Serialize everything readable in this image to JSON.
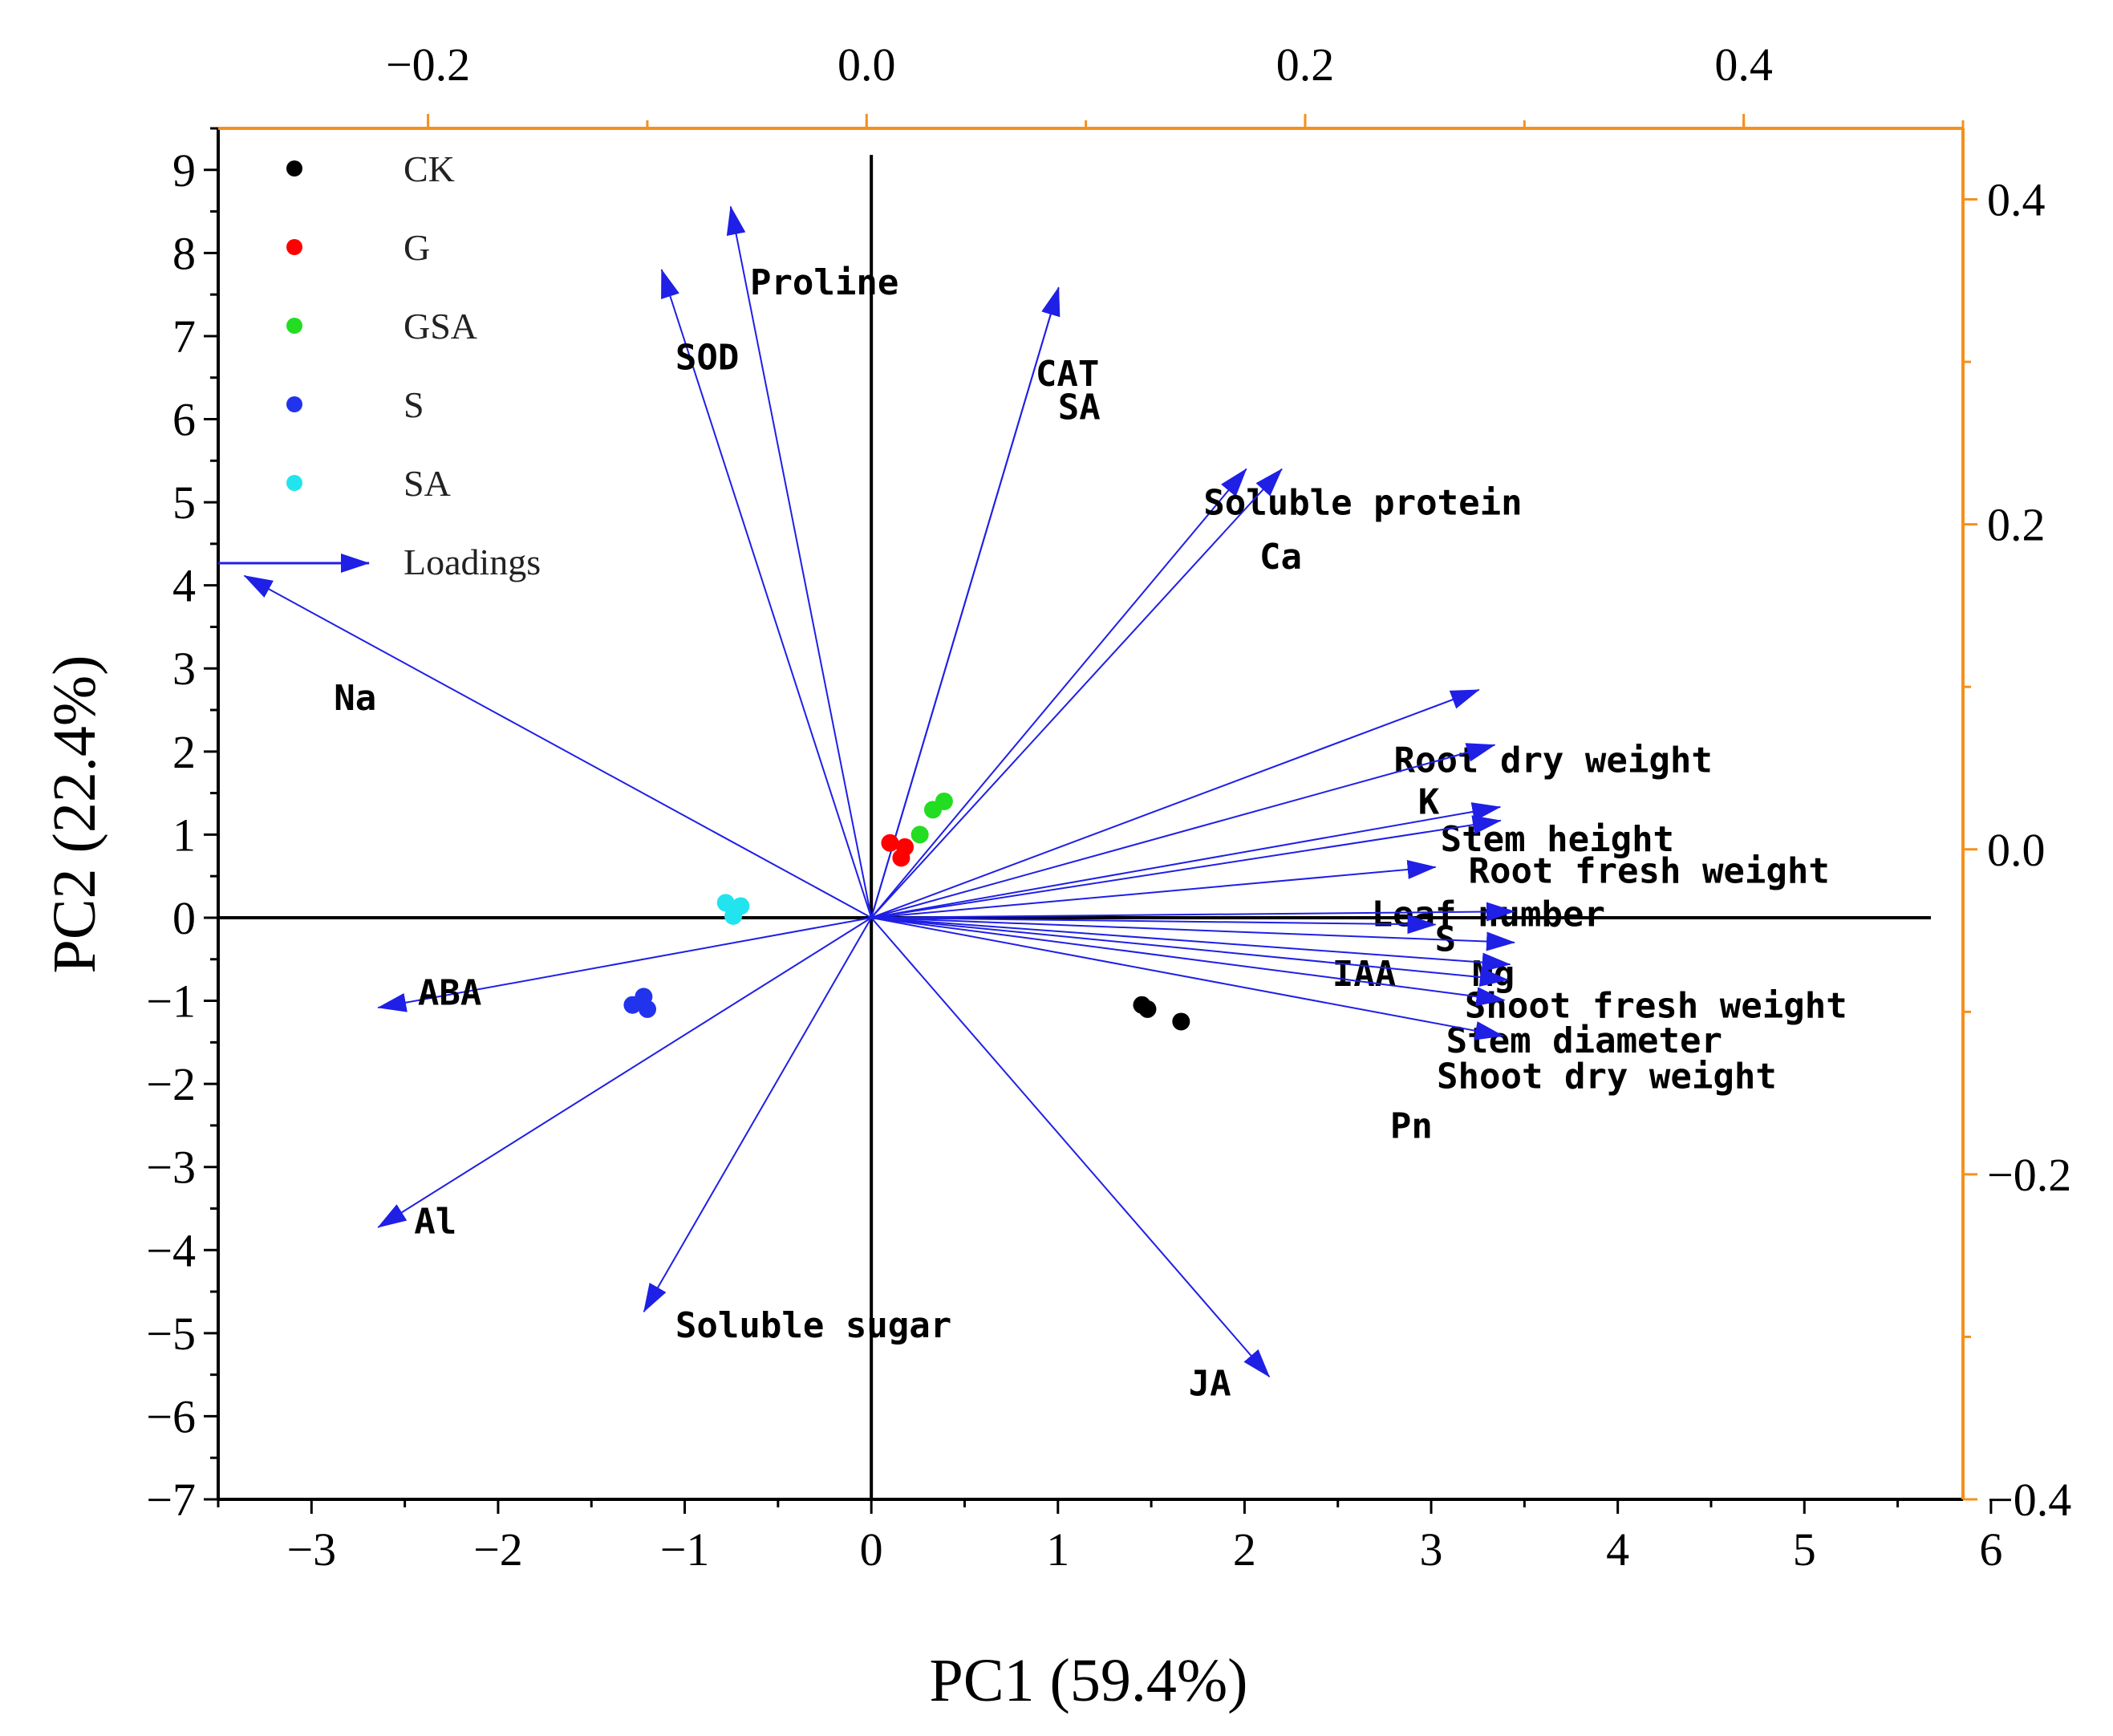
{
  "chart_data": {
    "type": "scatter",
    "subtype": "pca-biplot",
    "xlabel": "PC1 (59.4%)",
    "ylabel": "PC2 (22.4%)",
    "xlim": [
      -3.5,
      5.85
    ],
    "ylim": [
      -7,
      9.5
    ],
    "xticks": [
      -3,
      -2,
      -1,
      0,
      1,
      2,
      3,
      4,
      5,
      6
    ],
    "xtick_labels": [
      "−3",
      "−2",
      "−1",
      "0",
      "1",
      "2",
      "3",
      "4",
      "5",
      "6"
    ],
    "yticks": [
      -7,
      -6,
      -5,
      -4,
      -3,
      -2,
      -1,
      0,
      1,
      2,
      3,
      4,
      5,
      6,
      7,
      8,
      9
    ],
    "ytick_labels": [
      "−7",
      "−6",
      "−5",
      "−4",
      "−3",
      "−2",
      "−1",
      "0",
      "1",
      "2",
      "3",
      "4",
      "5",
      "6",
      "7",
      "8",
      "9"
    ],
    "top_axis": {
      "lim": [
        -0.2957,
        0.5
      ],
      "ticks": [
        -0.2,
        0.0,
        0.2,
        0.4
      ],
      "tick_labels": [
        "−0.2",
        "0.0",
        "0.2",
        "0.4"
      ],
      "color": "#f5901e"
    },
    "right_axis": {
      "lim": [
        -0.4,
        0.4437
      ],
      "ticks": [
        -0.4,
        -0.2,
        0.0,
        0.2,
        0.4
      ],
      "tick_labels": [
        "−0.4",
        "−0.2",
        "0.0",
        "0.2",
        "0.4"
      ],
      "color": "#f5901e"
    },
    "legend": {
      "placement": "top-left",
      "entries": [
        {
          "name": "CK",
          "color": "#000000",
          "kind": "point"
        },
        {
          "name": "G",
          "color": "#ff0000",
          "kind": "point"
        },
        {
          "name": "GSA",
          "color": "#22dd22",
          "kind": "point"
        },
        {
          "name": "S",
          "color": "#2233ee",
          "kind": "point"
        },
        {
          "name": "SA",
          "color": "#22e4ee",
          "kind": "point"
        },
        {
          "name": "Loadings",
          "color": "#1f1fe6",
          "kind": "arrow"
        }
      ]
    },
    "series": [
      {
        "name": "CK",
        "color": "#000000",
        "points": [
          [
            1.45,
            -1.05
          ],
          [
            1.48,
            -1.1
          ],
          [
            1.66,
            -1.25
          ]
        ]
      },
      {
        "name": "G",
        "color": "#ff0000",
        "points": [
          [
            0.1,
            0.9
          ],
          [
            0.18,
            0.85
          ],
          [
            0.16,
            0.72
          ]
        ]
      },
      {
        "name": "GSA",
        "color": "#22dd22",
        "points": [
          [
            0.26,
            1.0
          ],
          [
            0.33,
            1.3
          ],
          [
            0.39,
            1.4
          ]
        ]
      },
      {
        "name": "S",
        "color": "#2233ee",
        "points": [
          [
            -1.28,
            -1.05
          ],
          [
            -1.22,
            -0.95
          ],
          [
            -1.2,
            -1.1
          ]
        ]
      },
      {
        "name": "SA",
        "color": "#22e4ee",
        "points": [
          [
            -0.78,
            0.18
          ],
          [
            -0.74,
            0.02
          ],
          [
            -0.7,
            0.14
          ]
        ]
      }
    ],
    "loadings": [
      {
        "name": "Proline",
        "x": -0.062,
        "y": 0.3956,
        "lx": -0.65,
        "ly": 7.5
      },
      {
        "name": "SOD",
        "x": -0.0935,
        "y": 0.3568,
        "lx": -1.05,
        "ly": 6.6
      },
      {
        "name": "CAT",
        "x": 0.0876,
        "y": 0.3458,
        "lx": 0.88,
        "ly": 6.4
      },
      {
        "name": "SA",
        "x": 0.0876,
        "y": 0.3458,
        "lx": 1.0,
        "ly": 6.0
      },
      {
        "name": "Soluble protein",
        "x": 0.1732,
        "y": 0.2341,
        "lx": 1.78,
        "ly": 4.85
      },
      {
        "name": "Ca",
        "x": 0.1894,
        "y": 0.2341,
        "lx": 2.08,
        "ly": 4.2
      },
      {
        "name": "Na",
        "x": -0.2838,
        "y": 0.1684,
        "lx": -2.88,
        "ly": 2.5
      },
      {
        "name": "Root dry weight",
        "x": 0.2793,
        "y": 0.0982,
        "lx": 2.8,
        "ly": 1.75
      },
      {
        "name": "K",
        "x": 0.2865,
        "y": 0.0643,
        "lx": 2.93,
        "ly": 1.25
      },
      {
        "name": "Stem height",
        "x": 0.289,
        "y": 0.0261,
        "lx": 3.05,
        "ly": 0.8
      },
      {
        "name": "Root fresh weight",
        "x": 0.2892,
        "y": 0.0177,
        "lx": 3.2,
        "ly": 0.42
      },
      {
        "name": "Leaf number",
        "x": 0.2595,
        "y": -0.0109,
        "lx": 2.68,
        "ly": -0.1
      },
      {
        "name": "S",
        "x": 0.2955,
        "y": -0.0382,
        "lx": 3.02,
        "ly": -0.4
      },
      {
        "name": "IAA",
        "x": 0.2595,
        "y": -0.0463,
        "lx": 2.47,
        "ly": -0.82
      },
      {
        "name": "Mg",
        "x": 0.2955,
        "y": -0.0573,
        "lx": 3.22,
        "ly": -0.82
      },
      {
        "name": "Shoot fresh weight",
        "x": 0.2935,
        "y": -0.0708,
        "lx": 3.18,
        "ly": -1.2
      },
      {
        "name": "Stem diameter",
        "x": 0.2925,
        "y": -0.0803,
        "lx": 3.08,
        "ly": -1.62
      },
      {
        "name": "Shoot dry weight",
        "x": 0.2903,
        "y": -0.1148,
        "lx": 3.03,
        "ly": -2.05
      },
      {
        "name": "Pn",
        "x": 0.2909,
        "y": -0.0928,
        "lx": 2.78,
        "ly": -2.65
      },
      {
        "name": "ABA",
        "x": -0.2228,
        "y": -0.0974,
        "lx": -2.43,
        "ly": -1.05
      },
      {
        "name": "Al",
        "x": -0.2228,
        "y": -0.2326,
        "lx": -2.45,
        "ly": -3.8
      },
      {
        "name": "Soluble sugar",
        "x": -0.1016,
        "y": -0.2846,
        "lx": -1.05,
        "ly": -5.05
      },
      {
        "name": "JA",
        "x": 0.1837,
        "y": -0.3246,
        "lx": 1.7,
        "ly": -5.75
      }
    ]
  }
}
